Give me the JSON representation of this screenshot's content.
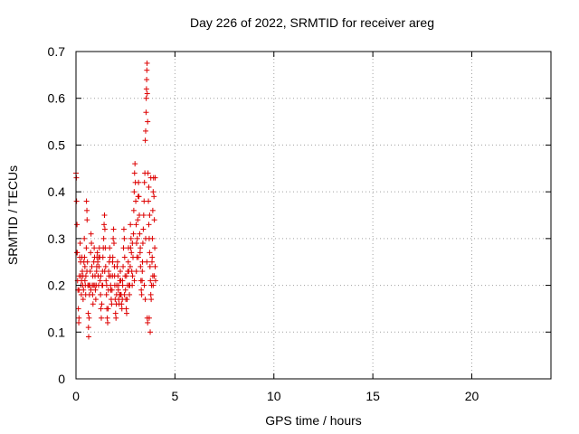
{
  "chart_data": {
    "type": "scatter",
    "title": "Day 226 of 2022, SRMTID for receiver areg",
    "xlabel": "GPS time / hours",
    "ylabel": "SRMTID / TECUs",
    "xlim": [
      0,
      24
    ],
    "ylim": [
      0,
      0.7
    ],
    "xticks": [
      0,
      5,
      10,
      15,
      20
    ],
    "yticks": [
      0,
      0.1,
      0.2,
      0.3,
      0.4,
      0.5,
      0.6,
      0.7
    ],
    "xtick_labels": [
      "0",
      "5",
      "10",
      "15",
      "20"
    ],
    "ytick_labels": [
      "0",
      "0.1",
      "0.2",
      "0.3",
      "0.4",
      "0.5",
      "0.6",
      "0.7"
    ],
    "grid": true,
    "marker": "+",
    "color": "#dd0000",
    "series": [
      {
        "name": "areg",
        "points": [
          [
            0.0,
            0.44
          ],
          [
            0.02,
            0.43
          ],
          [
            0.03,
            0.38
          ],
          [
            0.05,
            0.33
          ],
          [
            0.06,
            0.27
          ],
          [
            0.08,
            0.21
          ],
          [
            0.1,
            0.19
          ],
          [
            0.12,
            0.15
          ],
          [
            0.14,
            0.12
          ],
          [
            0.15,
            0.13
          ],
          [
            0.17,
            0.22
          ],
          [
            0.19,
            0.26
          ],
          [
            0.21,
            0.29
          ],
          [
            0.23,
            0.25
          ],
          [
            0.25,
            0.2
          ],
          [
            0.27,
            0.18
          ],
          [
            0.28,
            0.21
          ],
          [
            0.3,
            0.26
          ],
          [
            0.32,
            0.23
          ],
          [
            0.34,
            0.2
          ],
          [
            0.36,
            0.17
          ],
          [
            0.38,
            0.19
          ],
          [
            0.4,
            0.25
          ],
          [
            0.42,
            0.3
          ],
          [
            0.43,
            0.26
          ],
          [
            0.45,
            0.21
          ],
          [
            0.47,
            0.2
          ],
          [
            0.49,
            0.18
          ],
          [
            0.5,
            0.22
          ],
          [
            0.52,
            0.28
          ],
          [
            0.53,
            0.38
          ],
          [
            0.55,
            0.36
          ],
          [
            0.56,
            0.34
          ],
          [
            0.58,
            0.25
          ],
          [
            0.6,
            0.2
          ],
          [
            0.62,
            0.14
          ],
          [
            0.63,
            0.11
          ],
          [
            0.64,
            0.09
          ],
          [
            0.66,
            0.13
          ],
          [
            0.68,
            0.18
          ],
          [
            0.7,
            0.2
          ],
          [
            0.72,
            0.23
          ],
          [
            0.74,
            0.27
          ],
          [
            0.76,
            0.31
          ],
          [
            0.78,
            0.29
          ],
          [
            0.8,
            0.24
          ],
          [
            0.82,
            0.2
          ],
          [
            0.84,
            0.18
          ],
          [
            0.86,
            0.16
          ],
          [
            0.88,
            0.2
          ],
          [
            0.9,
            0.25
          ],
          [
            0.92,
            0.28
          ],
          [
            0.94,
            0.26
          ],
          [
            0.96,
            0.22
          ],
          [
            0.98,
            0.19
          ],
          [
            1.0,
            0.17
          ],
          [
            1.02,
            0.2
          ],
          [
            1.04,
            0.23
          ],
          [
            1.06,
            0.26
          ],
          [
            1.08,
            0.27
          ],
          [
            1.1,
            0.25
          ],
          [
            1.12,
            0.22
          ],
          [
            1.14,
            0.2
          ],
          [
            1.16,
            0.24
          ],
          [
            1.18,
            0.28
          ],
          [
            1.2,
            0.26
          ],
          [
            1.22,
            0.21
          ],
          [
            1.24,
            0.18
          ],
          [
            1.26,
            0.15
          ],
          [
            1.28,
            0.13
          ],
          [
            1.3,
            0.16
          ],
          [
            1.32,
            0.2
          ],
          [
            1.34,
            0.23
          ],
          [
            1.36,
            0.26
          ],
          [
            1.38,
            0.28
          ],
          [
            1.4,
            0.3
          ],
          [
            1.42,
            0.33
          ],
          [
            1.44,
            0.35
          ],
          [
            1.46,
            0.32
          ],
          [
            1.48,
            0.28
          ],
          [
            1.5,
            0.24
          ],
          [
            1.52,
            0.21
          ],
          [
            1.54,
            0.18
          ],
          [
            1.56,
            0.15
          ],
          [
            1.58,
            0.13
          ],
          [
            1.6,
            0.12
          ],
          [
            1.62,
            0.15
          ],
          [
            1.64,
            0.19
          ],
          [
            1.66,
            0.22
          ],
          [
            1.68,
            0.25
          ],
          [
            1.7,
            0.28
          ],
          [
            1.72,
            0.26
          ],
          [
            1.74,
            0.22
          ],
          [
            1.76,
            0.19
          ],
          [
            1.78,
            0.17
          ],
          [
            1.8,
            0.16
          ],
          [
            1.82,
            0.19
          ],
          [
            1.84,
            0.22
          ],
          [
            1.86,
            0.26
          ],
          [
            1.88,
            0.3
          ],
          [
            1.9,
            0.32
          ],
          [
            1.92,
            0.29
          ],
          [
            1.94,
            0.24
          ],
          [
            1.96,
            0.2
          ],
          [
            1.98,
            0.17
          ],
          [
            2.0,
            0.14
          ],
          [
            2.02,
            0.13
          ],
          [
            2.04,
            0.16
          ],
          [
            2.06,
            0.2
          ],
          [
            2.08,
            0.24
          ],
          [
            2.1,
            0.25
          ],
          [
            2.12,
            0.22
          ],
          [
            2.14,
            0.19
          ],
          [
            2.16,
            0.17
          ],
          [
            2.18,
            0.16
          ],
          [
            2.2,
            0.18
          ],
          [
            2.22,
            0.21
          ],
          [
            2.24,
            0.23
          ],
          [
            2.26,
            0.21
          ],
          [
            2.28,
            0.18
          ],
          [
            2.3,
            0.16
          ],
          [
            2.32,
            0.15
          ],
          [
            2.34,
            0.17
          ],
          [
            2.36,
            0.2
          ],
          [
            2.38,
            0.24
          ],
          [
            2.4,
            0.28
          ],
          [
            2.42,
            0.32
          ],
          [
            2.44,
            0.3
          ],
          [
            2.46,
            0.26
          ],
          [
            2.48,
            0.22
          ],
          [
            2.5,
            0.19
          ],
          [
            2.52,
            0.17
          ],
          [
            2.54,
            0.15
          ],
          [
            2.56,
            0.14
          ],
          [
            2.58,
            0.17
          ],
          [
            2.6,
            0.2
          ],
          [
            2.62,
            0.23
          ],
          [
            2.64,
            0.25
          ],
          [
            2.66,
            0.23
          ],
          [
            2.68,
            0.2
          ],
          [
            2.7,
            0.18
          ],
          [
            2.72,
            0.2
          ],
          [
            2.74,
            0.24
          ],
          [
            2.76,
            0.28
          ],
          [
            2.78,
            0.3
          ],
          [
            2.8,
            0.27
          ],
          [
            2.82,
            0.23
          ],
          [
            2.84,
            0.2
          ],
          [
            2.86,
            0.22
          ],
          [
            2.88,
            0.26
          ],
          [
            2.9,
            0.31
          ],
          [
            2.92,
            0.36
          ],
          [
            2.94,
            0.4
          ],
          [
            2.96,
            0.44
          ],
          [
            2.98,
            0.46
          ],
          [
            3.0,
            0.42
          ],
          [
            3.02,
            0.38
          ],
          [
            3.04,
            0.33
          ],
          [
            3.06,
            0.29
          ],
          [
            3.08,
            0.26
          ],
          [
            3.1,
            0.3
          ],
          [
            3.12,
            0.34
          ],
          [
            3.14,
            0.39
          ],
          [
            3.16,
            0.42
          ],
          [
            3.18,
            0.39
          ],
          [
            3.2,
            0.35
          ],
          [
            3.22,
            0.31
          ],
          [
            3.24,
            0.27
          ],
          [
            3.26,
            0.24
          ],
          [
            3.28,
            0.21
          ],
          [
            3.3,
            0.19
          ],
          [
            3.32,
            0.18
          ],
          [
            3.34,
            0.21
          ],
          [
            3.36,
            0.25
          ],
          [
            3.38,
            0.29
          ],
          [
            3.4,
            0.32
          ],
          [
            3.42,
            0.35
          ],
          [
            3.44,
            0.38
          ],
          [
            3.46,
            0.42
          ],
          [
            3.48,
            0.44
          ],
          [
            3.5,
            0.51
          ],
          [
            3.52,
            0.53
          ],
          [
            3.54,
            0.57
          ],
          [
            3.55,
            0.6
          ],
          [
            3.56,
            0.62
          ],
          [
            3.57,
            0.64
          ],
          [
            3.58,
            0.66
          ],
          [
            3.59,
            0.675
          ],
          [
            3.6,
            0.61
          ],
          [
            3.62,
            0.55
          ],
          [
            3.64,
            0.44
          ],
          [
            3.66,
            0.38
          ],
          [
            3.68,
            0.33
          ],
          [
            3.7,
            0.3
          ],
          [
            3.72,
            0.27
          ],
          [
            3.74,
            0.24
          ],
          [
            3.76,
            0.21
          ],
          [
            3.78,
            0.18
          ],
          [
            3.8,
            0.17
          ],
          [
            3.82,
            0.2
          ],
          [
            3.84,
            0.25
          ],
          [
            3.86,
            0.3
          ],
          [
            3.88,
            0.36
          ],
          [
            3.9,
            0.4
          ],
          [
            3.92,
            0.43
          ],
          [
            3.94,
            0.39
          ],
          [
            3.96,
            0.34
          ],
          [
            3.98,
            0.28
          ],
          [
            4.0,
            0.24
          ],
          [
            4.02,
            0.21
          ],
          [
            3.6,
            0.13
          ],
          [
            3.62,
            0.12
          ],
          [
            3.7,
            0.13
          ],
          [
            3.75,
            0.1
          ],
          [
            3.5,
            0.17
          ],
          [
            3.45,
            0.2
          ],
          [
            3.35,
            0.23
          ],
          [
            3.25,
            0.28
          ],
          [
            3.15,
            0.26
          ],
          [
            3.05,
            0.23
          ],
          [
            2.95,
            0.21
          ],
          [
            2.85,
            0.29
          ],
          [
            2.75,
            0.33
          ],
          [
            2.65,
            0.28
          ],
          [
            2.55,
            0.22
          ],
          [
            2.45,
            0.18
          ],
          [
            2.35,
            0.21
          ],
          [
            2.25,
            0.18
          ],
          [
            2.15,
            0.2
          ],
          [
            2.05,
            0.18
          ],
          [
            1.95,
            0.22
          ],
          [
            1.85,
            0.25
          ],
          [
            1.75,
            0.2
          ],
          [
            1.65,
            0.23
          ],
          [
            1.55,
            0.2
          ],
          [
            1.45,
            0.23
          ],
          [
            1.35,
            0.2
          ],
          [
            1.25,
            0.22
          ],
          [
            1.15,
            0.26
          ],
          [
            1.05,
            0.24
          ],
          [
            0.95,
            0.2
          ],
          [
            0.85,
            0.22
          ],
          [
            0.75,
            0.19
          ],
          [
            0.65,
            0.2
          ],
          [
            0.55,
            0.23
          ],
          [
            0.45,
            0.24
          ],
          [
            0.35,
            0.22
          ],
          [
            0.25,
            0.22
          ],
          [
            0.15,
            0.19
          ],
          [
            0.05,
            0.27
          ],
          [
            3.9,
            0.2
          ],
          [
            3.95,
            0.22
          ],
          [
            3.85,
            0.26
          ],
          [
            3.72,
            0.35
          ],
          [
            3.68,
            0.41
          ],
          [
            3.78,
            0.43
          ],
          [
            4.0,
            0.43
          ],
          [
            3.88,
            0.22
          ],
          [
            3.58,
            0.25
          ],
          [
            3.52,
            0.3
          ]
        ]
      }
    ]
  }
}
